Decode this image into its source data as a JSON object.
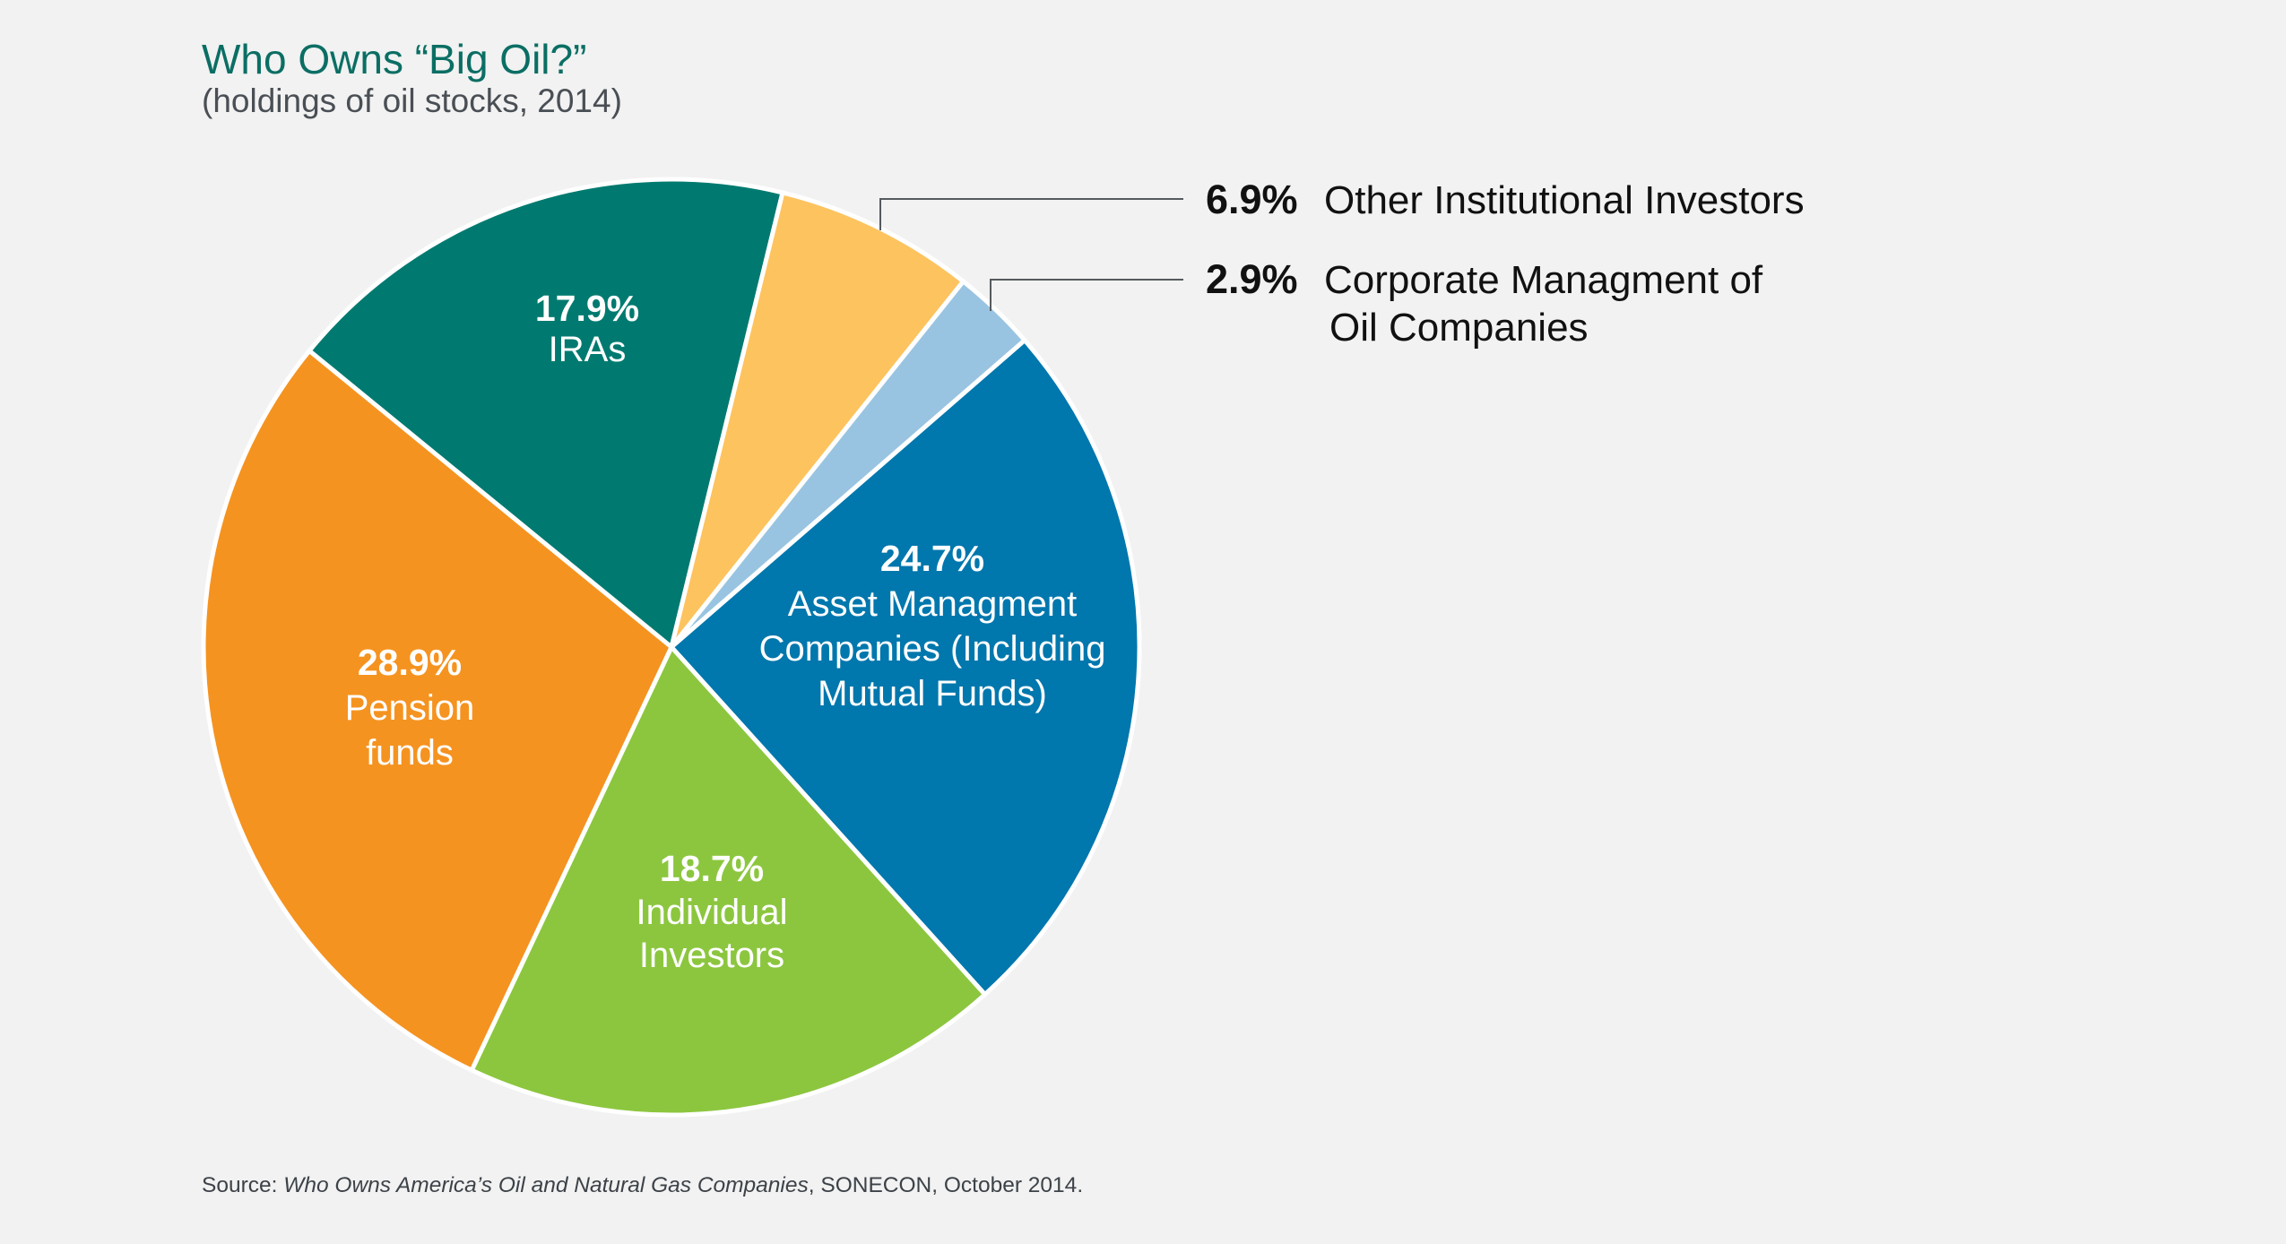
{
  "chart_data": {
    "type": "pie",
    "title": "Who Owns “Big Oil?”",
    "subtitle": "(holdings of oil stocks, 2014)",
    "unit": "%",
    "slices": [
      {
        "key": "iras",
        "pct_label": "17.9%",
        "value": 17.9,
        "label_lines": [
          "IRAs"
        ],
        "color": "#007a70",
        "label_placement": "inside"
      },
      {
        "key": "other-institutional",
        "pct_label": "6.9%",
        "value": 6.9,
        "label_lines": [
          "Other Institutional Investors"
        ],
        "color": "#fdc35f",
        "label_placement": "outside"
      },
      {
        "key": "corporate-management",
        "pct_label": "2.9%",
        "value": 2.9,
        "label_lines": [
          "Corporate Managment of",
          "Oil Companies"
        ],
        "color": "#99c4e1",
        "label_placement": "outside"
      },
      {
        "key": "asset-management",
        "pct_label": "24.7%",
        "value": 24.7,
        "label_lines": [
          "Asset Managment",
          "Companies (Including",
          "Mutual Funds)"
        ],
        "color": "#0077ad",
        "label_placement": "inside"
      },
      {
        "key": "individual-investors",
        "pct_label": "18.7%",
        "value": 18.7,
        "label_lines": [
          "Individual",
          "Investors"
        ],
        "color": "#8cc63f",
        "label_placement": "inside"
      },
      {
        "key": "pension-funds",
        "pct_label": "28.9%",
        "value": 28.9,
        "label_lines": [
          "Pension",
          "funds"
        ],
        "color": "#f59320",
        "label_placement": "inside"
      }
    ],
    "start_angle_deg": -50.7,
    "direction": "clockwise",
    "legend": "callouts-right"
  },
  "source": {
    "prefix": "Source: ",
    "title": "Who Owns America’s Oil and Natural Gas Companies",
    "suffix": ", SONECON, October 2014."
  },
  "colors": {
    "title": "#0b6e64",
    "background": "#f1f2f1"
  }
}
